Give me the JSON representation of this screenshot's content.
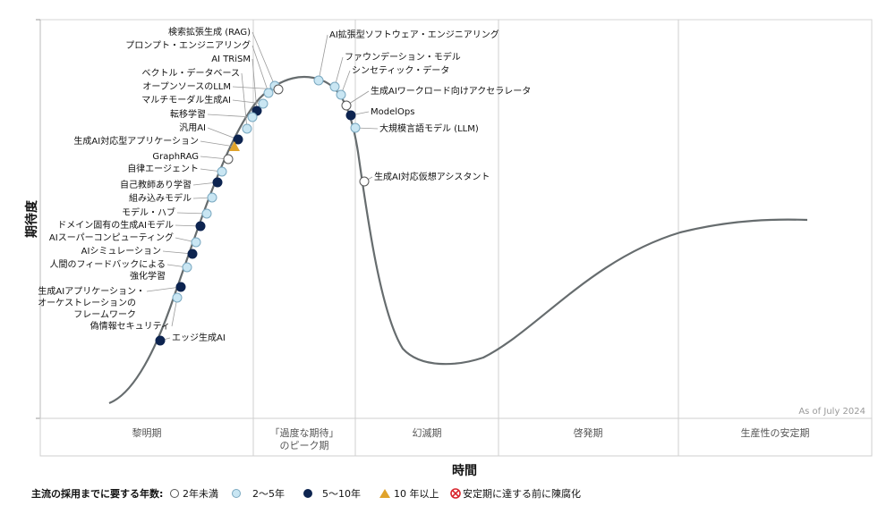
{
  "chart_data": {
    "type": "hype-cycle",
    "as_of": "As of July 2024",
    "ylabel": "期待度",
    "xlabel": "時間",
    "phases": [
      "黎明期",
      "「過度な期待」のピーク期",
      "幻滅期",
      "啓発期",
      "生産性の安定期"
    ],
    "legend": {
      "title": "主流の採用までに要する年数:",
      "items": [
        {
          "key": "lt2",
          "label": "2年未満",
          "color": "#ffffff"
        },
        {
          "key": "2to5",
          "label": "2～5年",
          "color": "#c9e6f3"
        },
        {
          "key": "5to10",
          "label": "5～10年",
          "color": "#0d2450"
        },
        {
          "key": "gt10",
          "label": "10 年以上",
          "color": "#e0a32b"
        },
        {
          "key": "obsolete",
          "label": "安定期に達する前に陳腐化",
          "color": "#d9262e"
        }
      ]
    },
    "points": [
      {
        "label": "検索拡張生成 (RAG)",
        "maturity": "2to5"
      },
      {
        "label": "プロンプト・エンジニアリング",
        "maturity": "2to5"
      },
      {
        "label": "AI TRiSM",
        "maturity": "5to10"
      },
      {
        "label": "ベクトル・データベース",
        "maturity": "2to5"
      },
      {
        "label": "オープンソースのLLM",
        "maturity": "lt2"
      },
      {
        "label": "マルチモーダル生成AI",
        "maturity": "2to5"
      },
      {
        "label": "転移学習",
        "maturity": "2to5"
      },
      {
        "label": "汎用AI",
        "maturity": "5to10"
      },
      {
        "label": "生成AI対応型アプリケーション",
        "maturity": "gt10"
      },
      {
        "label": "GraphRAG",
        "maturity": "lt2"
      },
      {
        "label": "自律エージェント",
        "maturity": "2to5"
      },
      {
        "label": "自己教師あり学習",
        "maturity": "5to10"
      },
      {
        "label": "組み込みモデル",
        "maturity": "2to5"
      },
      {
        "label": "モデル・ハブ",
        "maturity": "2to5"
      },
      {
        "label": "ドメイン固有の生成AIモデル",
        "maturity": "5to10"
      },
      {
        "label": "AIスーパーコンピューティング",
        "maturity": "2to5"
      },
      {
        "label": "AIシミュレーション",
        "maturity": "5to10"
      },
      {
        "label": "人間のフィードバックによる強化学習",
        "maturity": "2to5"
      },
      {
        "label": "生成AIアプリケーション・オーケストレーションのフレームワーク",
        "maturity": "5to10"
      },
      {
        "label": "偽情報セキュリティ",
        "maturity": "2to5"
      },
      {
        "label": "エッジ生成AI",
        "maturity": "5to10"
      },
      {
        "label": "AI拡張型ソフトウェア・エンジニアリング",
        "maturity": "2to5"
      },
      {
        "label": "ファウンデーション・モデル",
        "maturity": "2to5"
      },
      {
        "label": "シンセティック・データ",
        "maturity": "2to5"
      },
      {
        "label": "生成AIワークロード向けアクセラレータ",
        "maturity": "lt2"
      },
      {
        "label": "ModelOps",
        "maturity": "5to10"
      },
      {
        "label": "大規模言語モデル (LLM)",
        "maturity": "2to5"
      },
      {
        "label": "生成AI対応仮想アシスタント",
        "maturity": "lt2"
      }
    ]
  }
}
